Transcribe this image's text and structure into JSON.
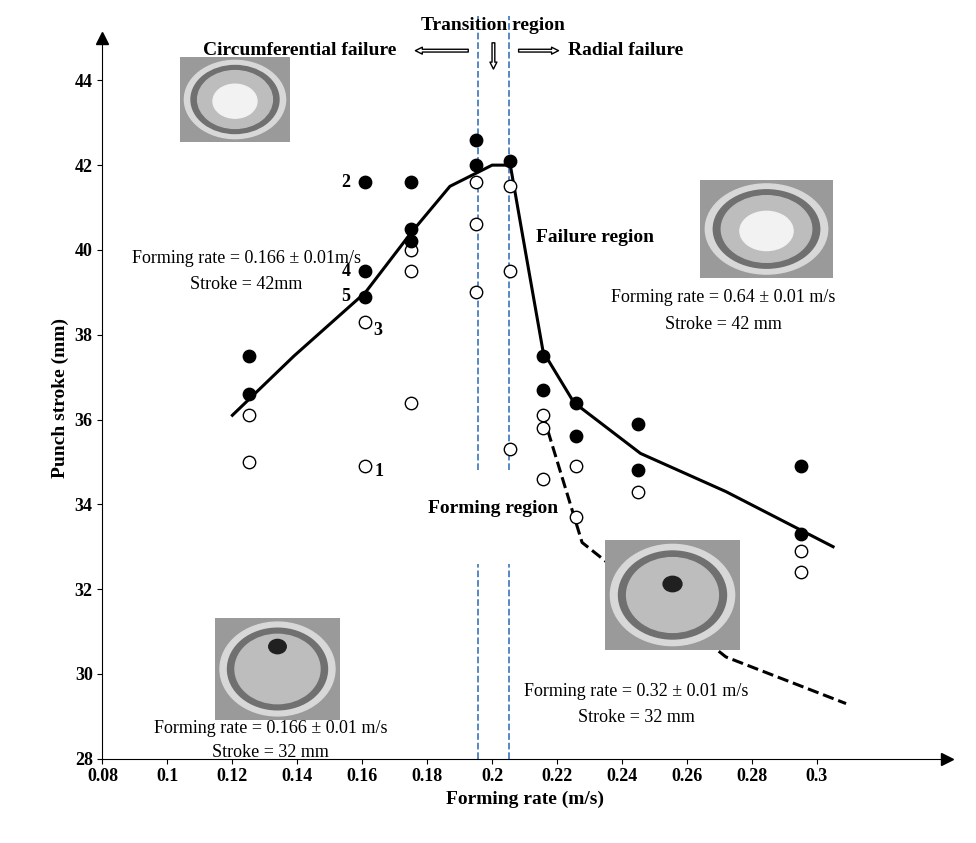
{
  "chart_data": {
    "type": "scatter",
    "x_label": "Forming rate (m/s)",
    "y_label": "Punch stroke (mm)",
    "xlim": [
      0.08,
      0.34
    ],
    "ylim": [
      28,
      45
    ],
    "xticks": [
      0.08,
      0.1,
      0.12,
      0.14,
      0.16,
      0.18,
      0.2,
      0.22,
      0.24,
      0.26,
      0.28,
      0.3
    ],
    "yticks": [
      28,
      30,
      32,
      34,
      36,
      38,
      40,
      42,
      44
    ],
    "grid": false,
    "series": [
      {
        "type": "scatter",
        "marker": "filled_circle",
        "color": "#000000",
        "x": [
          0.125,
          0.125,
          0.161,
          0.161,
          0.161,
          0.175,
          0.175,
          0.175,
          0.195,
          0.195,
          0.2056,
          0.2157,
          0.2157,
          0.2258,
          0.2258,
          0.245,
          0.245,
          0.295,
          0.295
        ],
        "values": [
          37.5,
          36.6,
          41.6,
          39.5,
          38.9,
          41.6,
          40.5,
          40.2,
          42.6,
          42.0,
          42.1,
          37.5,
          36.7,
          36.4,
          35.6,
          35.9,
          34.8,
          34.9,
          33.3
        ]
      },
      {
        "type": "scatter",
        "marker": "open_circle",
        "color": "#000000",
        "x": [
          0.125,
          0.125,
          0.161,
          0.161,
          0.175,
          0.175,
          0.175,
          0.195,
          0.195,
          0.195,
          0.2056,
          0.2056,
          0.2056,
          0.2157,
          0.2157,
          0.2157,
          0.2258,
          0.2258,
          0.245,
          0.295,
          0.295
        ],
        "values": [
          36.1,
          35.0,
          34.9,
          38.3,
          39.5,
          40.0,
          36.4,
          41.6,
          40.6,
          39.0,
          41.5,
          39.5,
          35.3,
          36.1,
          35.8,
          34.6,
          34.9,
          33.7,
          34.3,
          32.9,
          32.4
        ]
      },
      {
        "type": "line",
        "line_style": "solid",
        "color": "#000000",
        "x": [
          0.12,
          0.139,
          0.161,
          0.175,
          0.187,
          0.2,
          0.2056,
          0.2104,
          0.2157,
          0.2252,
          0.2457,
          0.272,
          0.305
        ],
        "values": [
          36.1,
          37.5,
          39.0,
          40.4,
          41.5,
          42.0,
          42.0,
          39.9,
          37.6,
          36.4,
          35.2,
          34.3,
          33.0
        ]
      },
      {
        "type": "line",
        "line_style": "dashed",
        "color": "#000000",
        "x": [
          0.2157,
          0.2277,
          0.272,
          0.309
        ],
        "values": [
          36.1,
          33.1,
          30.4,
          29.3
        ]
      }
    ],
    "vlines": {
      "x": [
        0.1955,
        0.2053
      ],
      "color": "#4a7fc1",
      "line_style": "dashed"
    },
    "point_labels": [
      {
        "text": "1",
        "x": 0.161,
        "y": 34.9
      },
      {
        "text": "2",
        "x": 0.161,
        "y": 41.6
      },
      {
        "text": "3",
        "x": 0.161,
        "y": 38.3
      },
      {
        "text": "4",
        "x": 0.161,
        "y": 39.5
      },
      {
        "text": "5",
        "x": 0.161,
        "y": 38.9
      }
    ],
    "annotations": {
      "transition": "Transition region",
      "circumferential": "Circumferential failure",
      "radial": "Radial failure",
      "failure_region": "Failure region",
      "forming_region": "Forming region"
    },
    "photo_captions": [
      [
        "Forming rate = 0.166 ± 0.01m/s",
        "Stroke = 42mm"
      ],
      [
        "Forming rate = 0.64 ± 0.01 m/s",
        "Stroke = 42 mm"
      ],
      [
        "Forming rate = 0.166 ± 0.01 m/s",
        "Stroke = 32 mm"
      ],
      [
        "Forming rate = 0.32 ± 0.01 m/s",
        "Stroke = 32 mm"
      ]
    ]
  }
}
